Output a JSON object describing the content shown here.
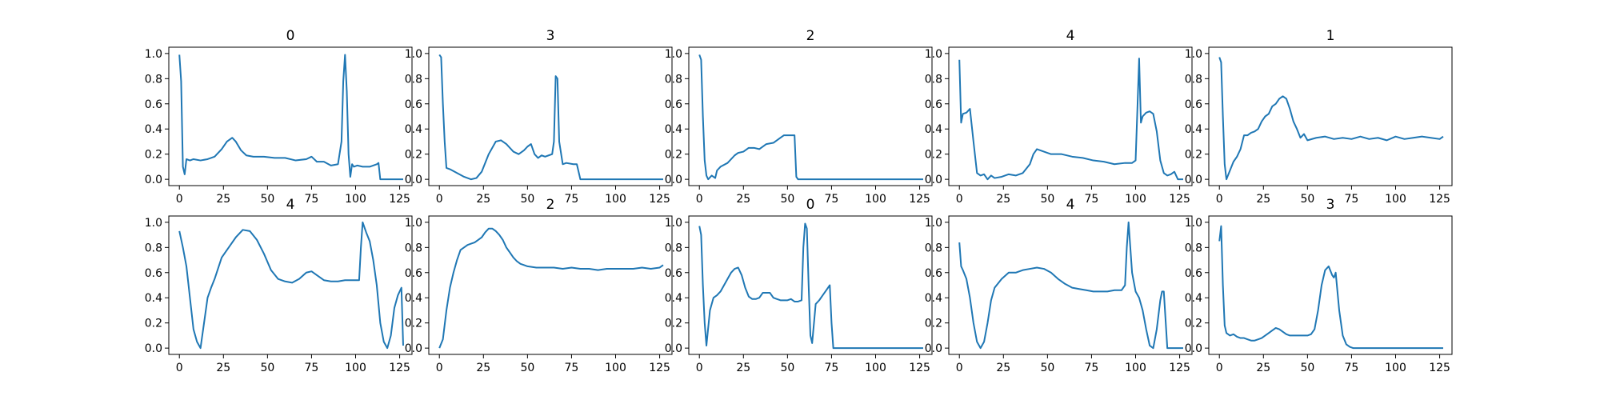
{
  "chart_data": [
    {
      "type": "line",
      "title": "0",
      "xlim": [
        -6,
        132
      ],
      "ylim": [
        -0.05,
        1.05
      ],
      "xticks": [
        "0",
        "25",
        "50",
        "75",
        "100",
        "125"
      ],
      "yticks": [
        "0.0",
        "0.2",
        "0.4",
        "0.6",
        "0.8",
        "1.0"
      ],
      "color": "#1f77b4",
      "x": [
        0,
        1,
        2,
        3,
        4,
        6,
        8,
        12,
        16,
        20,
        24,
        27,
        30,
        32,
        35,
        38,
        42,
        48,
        54,
        60,
        66,
        72,
        75,
        78,
        82,
        86,
        90,
        92,
        93,
        94,
        95,
        96,
        97,
        98,
        99,
        101,
        104,
        108,
        112,
        113,
        114,
        116,
        120,
        124,
        127
      ],
      "y": [
        0.99,
        0.78,
        0.1,
        0.04,
        0.16,
        0.15,
        0.16,
        0.15,
        0.16,
        0.18,
        0.24,
        0.3,
        0.33,
        0.3,
        0.23,
        0.19,
        0.18,
        0.18,
        0.17,
        0.17,
        0.15,
        0.16,
        0.18,
        0.14,
        0.14,
        0.11,
        0.12,
        0.3,
        0.78,
        0.99,
        0.7,
        0.2,
        0.02,
        0.12,
        0.1,
        0.11,
        0.1,
        0.1,
        0.12,
        0.13,
        0.0,
        0.0,
        0.0,
        0.0,
        0.0
      ]
    },
    {
      "type": "line",
      "title": "3",
      "xlim": [
        -6,
        132
      ],
      "ylim": [
        -0.05,
        1.05
      ],
      "xticks": [
        "0",
        "25",
        "50",
        "75",
        "100",
        "125"
      ],
      "yticks": [
        "0.0",
        "0.2",
        "0.4",
        "0.6",
        "0.8",
        "1.0"
      ],
      "color": "#1f77b4",
      "x": [
        0,
        1,
        2,
        3,
        4,
        6,
        10,
        14,
        18,
        21,
        24,
        28,
        32,
        35,
        38,
        42,
        45,
        48,
        50,
        52,
        54,
        56,
        58,
        60,
        62,
        64,
        65,
        66,
        67,
        68,
        70,
        72,
        76,
        78,
        80,
        85,
        100,
        127
      ],
      "y": [
        0.99,
        0.97,
        0.6,
        0.3,
        0.09,
        0.08,
        0.05,
        0.02,
        0.0,
        0.01,
        0.06,
        0.2,
        0.3,
        0.31,
        0.28,
        0.22,
        0.2,
        0.23,
        0.26,
        0.28,
        0.2,
        0.17,
        0.19,
        0.18,
        0.19,
        0.2,
        0.3,
        0.82,
        0.8,
        0.3,
        0.12,
        0.13,
        0.12,
        0.12,
        0.0,
        0.0,
        0.0,
        0.0
      ]
    },
    {
      "type": "line",
      "title": "2",
      "xlim": [
        -6,
        132
      ],
      "ylim": [
        -0.05,
        1.05
      ],
      "xticks": [
        "0",
        "25",
        "50",
        "75",
        "100",
        "125"
      ],
      "yticks": [
        "0.0",
        "0.2",
        "0.4",
        "0.6",
        "0.8",
        "1.0"
      ],
      "color": "#1f77b4",
      "x": [
        0,
        1,
        2,
        3,
        4,
        5,
        7,
        9,
        10,
        12,
        16,
        20,
        22,
        25,
        28,
        31,
        34,
        38,
        42,
        46,
        48,
        50,
        52,
        54,
        55,
        56,
        60,
        80,
        100,
        127
      ],
      "y": [
        0.99,
        0.95,
        0.5,
        0.15,
        0.03,
        0.0,
        0.03,
        0.01,
        0.07,
        0.1,
        0.13,
        0.19,
        0.21,
        0.22,
        0.25,
        0.25,
        0.24,
        0.28,
        0.29,
        0.33,
        0.35,
        0.35,
        0.35,
        0.35,
        0.02,
        0.0,
        0.0,
        0.0,
        0.0,
        0.0
      ]
    },
    {
      "type": "line",
      "title": "4",
      "xlim": [
        -6,
        132
      ],
      "ylim": [
        -0.05,
        1.05
      ],
      "xticks": [
        "0",
        "25",
        "50",
        "75",
        "100",
        "125"
      ],
      "yticks": [
        "0.0",
        "0.2",
        "0.4",
        "0.6",
        "0.8",
        "1.0"
      ],
      "color": "#1f77b4",
      "x": [
        0,
        1,
        2,
        4,
        6,
        8,
        10,
        12,
        14,
        16,
        18,
        20,
        24,
        28,
        32,
        36,
        40,
        42,
        44,
        48,
        52,
        58,
        64,
        70,
        76,
        82,
        88,
        94,
        98,
        100,
        101,
        102,
        103,
        104,
        106,
        108,
        110,
        112,
        114,
        116,
        118,
        120,
        122,
        124,
        127
      ],
      "y": [
        0.95,
        0.45,
        0.52,
        0.53,
        0.56,
        0.3,
        0.05,
        0.03,
        0.04,
        0.0,
        0.03,
        0.01,
        0.02,
        0.04,
        0.03,
        0.05,
        0.12,
        0.2,
        0.24,
        0.22,
        0.2,
        0.2,
        0.18,
        0.17,
        0.15,
        0.14,
        0.12,
        0.13,
        0.13,
        0.15,
        0.55,
        0.96,
        0.45,
        0.5,
        0.53,
        0.54,
        0.52,
        0.38,
        0.15,
        0.05,
        0.03,
        0.04,
        0.06,
        0.0,
        0.0
      ]
    },
    {
      "type": "line",
      "title": "1",
      "xlim": [
        -6,
        132
      ],
      "ylim": [
        -0.05,
        1.05
      ],
      "xticks": [
        "0",
        "25",
        "50",
        "75",
        "100",
        "125"
      ],
      "yticks": [
        "0.0",
        "0.2",
        "0.4",
        "0.6",
        "0.8",
        "1.0"
      ],
      "color": "#1f77b4",
      "x": [
        0,
        1,
        2,
        3,
        4,
        6,
        8,
        10,
        12,
        14,
        16,
        18,
        20,
        22,
        24,
        26,
        28,
        30,
        32,
        34,
        36,
        38,
        40,
        42,
        44,
        46,
        48,
        50,
        55,
        60,
        65,
        70,
        75,
        80,
        85,
        90,
        95,
        100,
        105,
        110,
        115,
        120,
        125,
        127
      ],
      "y": [
        0.97,
        0.93,
        0.5,
        0.12,
        0.0,
        0.07,
        0.14,
        0.18,
        0.24,
        0.35,
        0.35,
        0.37,
        0.38,
        0.4,
        0.46,
        0.5,
        0.52,
        0.58,
        0.6,
        0.64,
        0.66,
        0.64,
        0.56,
        0.46,
        0.4,
        0.33,
        0.36,
        0.31,
        0.33,
        0.34,
        0.32,
        0.33,
        0.32,
        0.34,
        0.32,
        0.33,
        0.31,
        0.34,
        0.32,
        0.33,
        0.34,
        0.33,
        0.32,
        0.34
      ]
    },
    {
      "type": "line",
      "title": "4",
      "xlim": [
        -6,
        132
      ],
      "ylim": [
        -0.05,
        1.05
      ],
      "xticks": [
        "0",
        "25",
        "50",
        "75",
        "100",
        "125"
      ],
      "yticks": [
        "0.0",
        "0.2",
        "0.4",
        "0.6",
        "0.8",
        "1.0"
      ],
      "color": "#1f77b4",
      "x": [
        0,
        2,
        4,
        6,
        8,
        10,
        12,
        14,
        16,
        18,
        20,
        24,
        28,
        32,
        36,
        40,
        44,
        48,
        52,
        56,
        60,
        64,
        68,
        72,
        75,
        78,
        82,
        86,
        90,
        94,
        98,
        100,
        102,
        103,
        104,
        106,
        108,
        110,
        112,
        114,
        116,
        118,
        120,
        122,
        124,
        126,
        127
      ],
      "y": [
        0.93,
        0.8,
        0.65,
        0.4,
        0.15,
        0.05,
        0.0,
        0.2,
        0.4,
        0.48,
        0.55,
        0.72,
        0.8,
        0.88,
        0.94,
        0.93,
        0.86,
        0.75,
        0.62,
        0.55,
        0.53,
        0.52,
        0.55,
        0.6,
        0.61,
        0.58,
        0.54,
        0.53,
        0.53,
        0.54,
        0.54,
        0.54,
        0.54,
        0.8,
        1.0,
        0.92,
        0.85,
        0.7,
        0.5,
        0.2,
        0.05,
        0.0,
        0.1,
        0.32,
        0.42,
        0.48,
        0.02
      ]
    },
    {
      "type": "line",
      "title": "2",
      "xlim": [
        -6,
        132
      ],
      "ylim": [
        -0.05,
        1.05
      ],
      "xticks": [
        "0",
        "25",
        "50",
        "75",
        "100",
        "125"
      ],
      "yticks": [
        "0.0",
        "0.2",
        "0.4",
        "0.6",
        "0.8",
        "1.0"
      ],
      "color": "#1f77b4",
      "x": [
        0,
        2,
        4,
        6,
        8,
        10,
        12,
        14,
        16,
        18,
        20,
        22,
        24,
        26,
        28,
        30,
        32,
        34,
        36,
        38,
        40,
        42,
        44,
        46,
        48,
        50,
        55,
        60,
        65,
        70,
        75,
        80,
        85,
        90,
        95,
        100,
        105,
        110,
        115,
        120,
        125,
        127
      ],
      "y": [
        0.0,
        0.07,
        0.3,
        0.48,
        0.6,
        0.7,
        0.78,
        0.8,
        0.82,
        0.83,
        0.84,
        0.86,
        0.88,
        0.92,
        0.95,
        0.95,
        0.93,
        0.9,
        0.86,
        0.8,
        0.76,
        0.72,
        0.69,
        0.67,
        0.66,
        0.65,
        0.64,
        0.64,
        0.64,
        0.63,
        0.64,
        0.63,
        0.63,
        0.62,
        0.63,
        0.63,
        0.63,
        0.63,
        0.64,
        0.63,
        0.64,
        0.66
      ]
    },
    {
      "type": "line",
      "title": "0",
      "xlim": [
        -6,
        132
      ],
      "ylim": [
        -0.05,
        1.05
      ],
      "xticks": [
        "0",
        "25",
        "50",
        "75",
        "100",
        "125"
      ],
      "yticks": [
        "0.0",
        "0.2",
        "0.4",
        "0.6",
        "0.8",
        "1.0"
      ],
      "color": "#1f77b4",
      "x": [
        0,
        1,
        2,
        3,
        4,
        6,
        8,
        10,
        12,
        14,
        16,
        18,
        20,
        22,
        24,
        26,
        28,
        30,
        32,
        34,
        36,
        38,
        40,
        42,
        44,
        46,
        48,
        50,
        52,
        54,
        56,
        58,
        59,
        60,
        61,
        62,
        63,
        64,
        66,
        68,
        70,
        72,
        74,
        75,
        76,
        80,
        100,
        127
      ],
      "y": [
        0.97,
        0.9,
        0.5,
        0.2,
        0.02,
        0.3,
        0.4,
        0.42,
        0.45,
        0.5,
        0.55,
        0.6,
        0.63,
        0.64,
        0.58,
        0.48,
        0.41,
        0.39,
        0.39,
        0.4,
        0.44,
        0.44,
        0.44,
        0.4,
        0.39,
        0.38,
        0.38,
        0.38,
        0.39,
        0.37,
        0.37,
        0.38,
        0.8,
        0.99,
        0.95,
        0.5,
        0.1,
        0.04,
        0.35,
        0.38,
        0.42,
        0.46,
        0.5,
        0.2,
        0.0,
        0.0,
        0.0,
        0.0
      ]
    },
    {
      "type": "line",
      "title": "4",
      "xlim": [
        -6,
        132
      ],
      "ylim": [
        -0.05,
        1.05
      ],
      "xticks": [
        "0",
        "25",
        "50",
        "75",
        "100",
        "125"
      ],
      "yticks": [
        "0.0",
        "0.2",
        "0.4",
        "0.6",
        "0.8",
        "1.0"
      ],
      "color": "#1f77b4",
      "x": [
        0,
        1,
        2,
        4,
        6,
        8,
        10,
        12,
        14,
        16,
        18,
        20,
        24,
        28,
        32,
        36,
        40,
        44,
        48,
        52,
        56,
        60,
        64,
        68,
        72,
        76,
        80,
        84,
        88,
        92,
        94,
        95,
        96,
        97,
        98,
        100,
        102,
        104,
        106,
        108,
        110,
        112,
        114,
        115,
        116,
        118,
        120,
        124,
        127
      ],
      "y": [
        0.84,
        0.65,
        0.62,
        0.55,
        0.4,
        0.2,
        0.05,
        0.0,
        0.05,
        0.2,
        0.38,
        0.48,
        0.55,
        0.6,
        0.6,
        0.62,
        0.63,
        0.64,
        0.63,
        0.6,
        0.55,
        0.51,
        0.48,
        0.47,
        0.46,
        0.45,
        0.45,
        0.45,
        0.46,
        0.46,
        0.5,
        0.8,
        1.0,
        0.8,
        0.6,
        0.45,
        0.4,
        0.3,
        0.15,
        0.02,
        0.0,
        0.15,
        0.38,
        0.45,
        0.45,
        0.0,
        0.0,
        0.0,
        0.0
      ]
    },
    {
      "type": "line",
      "title": "3",
      "xlim": [
        -6,
        132
      ],
      "ylim": [
        -0.05,
        1.05
      ],
      "xticks": [
        "0",
        "25",
        "50",
        "75",
        "100",
        "125"
      ],
      "yticks": [
        "0.0",
        "0.2",
        "0.4",
        "0.6",
        "0.8",
        "1.0"
      ],
      "color": "#1f77b4",
      "x": [
        0,
        1,
        2,
        3,
        4,
        6,
        8,
        10,
        12,
        14,
        16,
        18,
        20,
        22,
        24,
        26,
        28,
        30,
        32,
        34,
        36,
        38,
        40,
        42,
        44,
        46,
        48,
        50,
        52,
        54,
        56,
        58,
        60,
        62,
        64,
        65,
        66,
        68,
        70,
        72,
        74,
        76,
        80,
        100,
        127
      ],
      "y": [
        0.85,
        0.97,
        0.5,
        0.18,
        0.12,
        0.1,
        0.11,
        0.09,
        0.08,
        0.08,
        0.07,
        0.06,
        0.06,
        0.07,
        0.08,
        0.1,
        0.12,
        0.14,
        0.16,
        0.15,
        0.13,
        0.11,
        0.1,
        0.1,
        0.1,
        0.1,
        0.1,
        0.1,
        0.11,
        0.15,
        0.3,
        0.5,
        0.62,
        0.65,
        0.58,
        0.56,
        0.6,
        0.3,
        0.1,
        0.03,
        0.01,
        0.0,
        0.0,
        0.0,
        0.0
      ]
    }
  ]
}
